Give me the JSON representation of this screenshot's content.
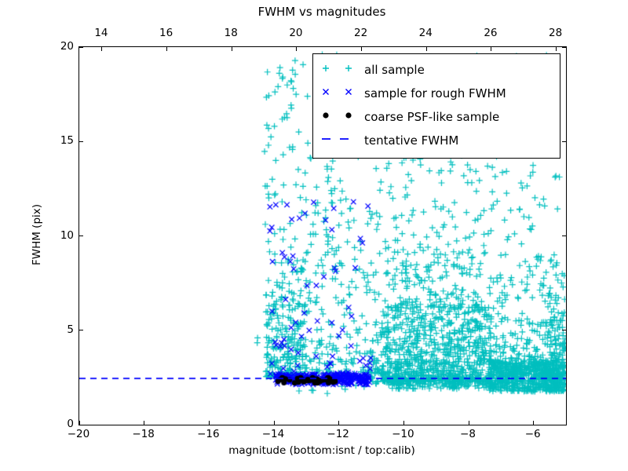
{
  "chart_data": {
    "type": "scatter",
    "title": "FWHM vs magnitudes",
    "xlabel": "magnitude (bottom:isnt / top:calib)",
    "ylabel": "FWHM (pix)",
    "xlim": [
      -20,
      -5
    ],
    "ylim": [
      0,
      20
    ],
    "top_xlim": [
      13.3,
      28.3
    ],
    "x_ticks_bottom": [
      -20,
      -18,
      -16,
      -14,
      -12,
      -10,
      -8,
      -6
    ],
    "x_ticks_top": [
      14,
      16,
      18,
      20,
      22,
      24,
      26,
      28
    ],
    "y_ticks": [
      0,
      5,
      10,
      15,
      20
    ],
    "grid": false,
    "legend_position": "upper right",
    "tentative_fwhm": {
      "y": 2.45,
      "color": "#0000ff",
      "dash": [
        8,
        6
      ]
    },
    "series": [
      {
        "name": "all sample",
        "marker": "plus",
        "color": "#00bfbf",
        "clusters": [
          {
            "n": 270,
            "x": [
              -14.25,
              -13.0
            ],
            "y": [
              2.55,
              8.2
            ],
            "ybias": "low"
          },
          {
            "n": 110,
            "x": [
              -14.3,
              -12.1
            ],
            "y": [
              8.2,
              19.6
            ]
          },
          {
            "n": 2,
            "x": [
              -14.9,
              -14.4
            ],
            "y": [
              3.5,
              4.6
            ]
          },
          {
            "n": 150,
            "x": [
              -13.0,
              -10.7
            ],
            "y": [
              2.7,
              8.2
            ],
            "ybias": "low"
          },
          {
            "n": 80,
            "x": [
              -12.8,
              -10.7
            ],
            "y": [
              8.2,
              17.3
            ]
          },
          {
            "n": 850,
            "x": [
              -10.7,
              -7.3
            ],
            "y": [
              2.3,
              6.2
            ],
            "ybias": "low"
          },
          {
            "n": 200,
            "x": [
              -10.6,
              -7.2
            ],
            "y": [
              6.2,
              10.5
            ],
            "ybias": "low"
          },
          {
            "n": 90,
            "x": [
              -10.8,
              -6.0
            ],
            "y": [
              10.5,
              16.5
            ]
          },
          {
            "n": 55,
            "x": [
              -13.9,
              -5.6
            ],
            "y": [
              16.5,
              19.7
            ]
          },
          {
            "n": 650,
            "x": [
              -7.4,
              -5.02
            ],
            "y": [
              1.75,
              3.3
            ]
          },
          {
            "n": 220,
            "x": [
              -7.4,
              -5.05
            ],
            "y": [
              3.3,
              9.0
            ],
            "ybias": "low"
          },
          {
            "n": 120,
            "x": [
              -5.6,
              -5.02
            ],
            "y": [
              1.8,
              7.0
            ],
            "ybias": "low"
          },
          {
            "n": 45,
            "x": [
              -9.0,
              -5.1
            ],
            "y": [
              9.0,
              14.0
            ]
          },
          {
            "n": 120,
            "x": [
              -10.5,
              -7.4
            ],
            "y": [
              1.9,
              2.3
            ]
          },
          {
            "n": 8,
            "x": [
              -13.6,
              -11.2
            ],
            "y": [
              1.6,
              2.1
            ]
          },
          {
            "n": 25,
            "x": [
              -11.05,
              -10.6
            ],
            "y": [
              2.1,
              3.5
            ]
          }
        ]
      },
      {
        "name": "sample for rough FWHM",
        "marker": "x",
        "color": "#0000ff",
        "clusters": [
          {
            "n": 300,
            "x": [
              -13.95,
              -11.05
            ],
            "y": [
              2.12,
              2.68
            ]
          },
          {
            "n": 72,
            "x": [
              -14.15,
              -10.95
            ],
            "y": [
              2.68,
              12.3
            ],
            "ybias": "low"
          }
        ]
      },
      {
        "name": "coarse PSF-like sample",
        "marker": "dot",
        "color": "#000000",
        "clusters": [
          {
            "n": 42,
            "x": [
              -13.88,
              -12.1
            ],
            "y": [
              2.2,
              2.5
            ]
          }
        ]
      }
    ],
    "legend": [
      {
        "label": "all sample",
        "marker": "plus",
        "color": "#00bfbf"
      },
      {
        "label": "sample for rough FWHM",
        "marker": "x",
        "color": "#0000ff"
      },
      {
        "label": "coarse PSF-like sample",
        "marker": "dot",
        "color": "#000000"
      },
      {
        "label": "tentative FWHM",
        "marker": "dash",
        "color": "#0000ff"
      }
    ]
  }
}
